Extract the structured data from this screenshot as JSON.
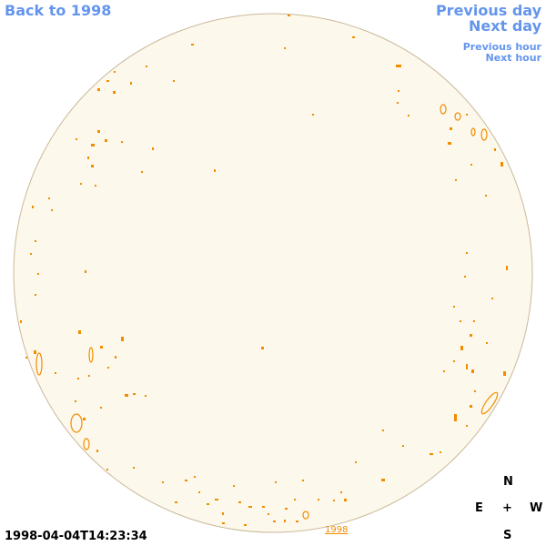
{
  "navigation": {
    "back": "Back to 1998",
    "previous_day": "Previous day",
    "next_day": "Next day",
    "previous_hour": "Previous hour",
    "next_hour": "Next hour"
  },
  "timestamp": "1998-04-04T14:23:34",
  "year_link": "1998",
  "compass": {
    "north": "N",
    "east": "E",
    "center": "+",
    "west": "W",
    "south": "S"
  }
}
